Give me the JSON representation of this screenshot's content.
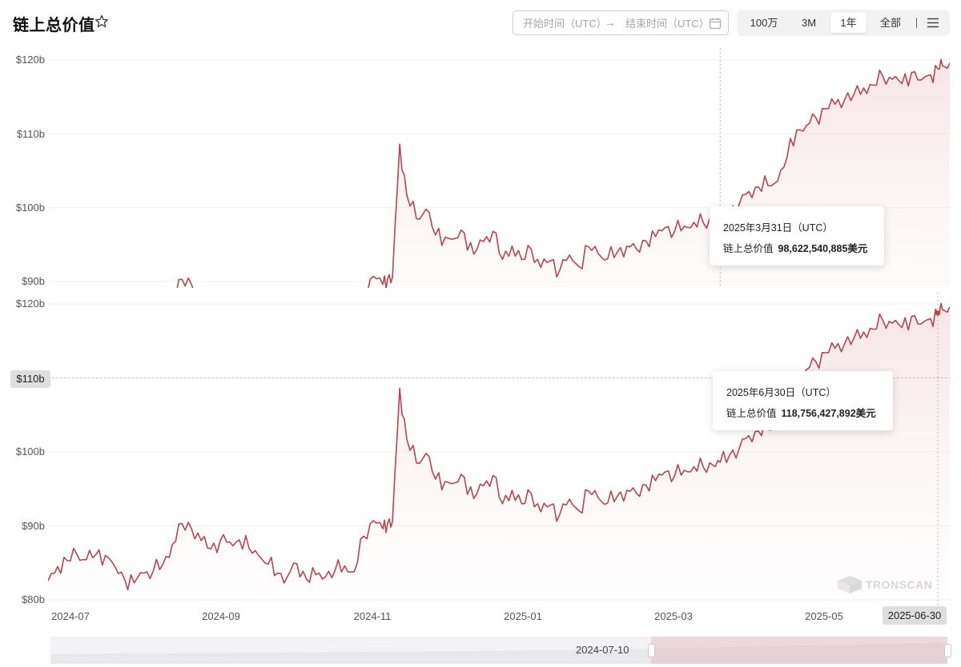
{
  "header": {
    "title": "链上总价值",
    "star_icon": "star-icon",
    "range": {
      "start_placeholder": "开始时间（UTC）",
      "arrow": "→",
      "end_placeholder": "结束时间（UTC）",
      "calendar_icon": "calendar-icon"
    },
    "zoom": [
      {
        "label": "100万",
        "active": false
      },
      {
        "label": "3M",
        "active": false
      },
      {
        "label": "1年",
        "active": true
      },
      {
        "label": "全部",
        "active": false
      }
    ],
    "menu_icon": "menu-icon"
  },
  "chart_data": [
    {
      "type": "area",
      "title": "",
      "xlabel": "",
      "ylabel": "",
      "ylim": [
        88,
        120
      ],
      "y_ticks": [
        "$90b",
        "$100b",
        "$110b",
        "$120b"
      ],
      "clipped_tick": "$80b",
      "crosshair": "vertical",
      "series": [
        {
          "name": "链上总价值",
          "color": "#b5454f",
          "unit": "$b"
        }
      ],
      "tooltip": {
        "date": "2025年3月31日（UTC）",
        "label": "链上总价值",
        "value": "98,622,540,885美元",
        "x": "2025-03-31",
        "y": 98.6225
      }
    },
    {
      "type": "area",
      "title": "",
      "xlabel": "",
      "ylabel": "",
      "ylim": [
        80,
        120
      ],
      "y_ticks": [
        "$80b",
        "$90b",
        "$100b",
        "$120b"
      ],
      "y_highlight": "$110b",
      "crosshair": "both",
      "x_ticks": [
        "2024-07",
        "2024-09",
        "2024-11",
        "2025-01",
        "2025-03",
        "2025-05"
      ],
      "x_highlight": "2025-06-30",
      "series": [
        {
          "name": "链上总价值",
          "color": "#b5454f",
          "unit": "$b",
          "x": [
            "2024-06-23",
            "2024-06-27",
            "2024-07-01",
            "2024-07-05",
            "2024-07-09",
            "2024-07-13",
            "2024-07-17",
            "2024-07-21",
            "2024-07-25",
            "2024-07-29",
            "2024-08-02",
            "2024-08-06",
            "2024-08-10",
            "2024-08-14",
            "2024-08-18",
            "2024-08-22",
            "2024-08-26",
            "2024-08-30",
            "2024-09-03",
            "2024-09-07",
            "2024-09-11",
            "2024-09-15",
            "2024-09-19",
            "2024-09-23",
            "2024-09-27",
            "2024-10-01",
            "2024-10-05",
            "2024-10-09",
            "2024-10-13",
            "2024-10-17",
            "2024-10-21",
            "2024-10-25",
            "2024-10-29",
            "2024-11-02",
            "2024-11-06",
            "2024-11-10",
            "2024-11-12",
            "2024-11-14",
            "2024-11-17",
            "2024-11-20",
            "2024-11-24",
            "2024-11-28",
            "2024-12-02",
            "2024-12-06",
            "2024-12-10",
            "2024-12-14",
            "2024-12-18",
            "2024-12-22",
            "2024-12-26",
            "2024-12-30",
            "2025-01-03",
            "2025-01-07",
            "2025-01-11",
            "2025-01-15",
            "2025-01-19",
            "2025-01-23",
            "2025-01-27",
            "2025-01-31",
            "2025-02-04",
            "2025-02-08",
            "2025-02-12",
            "2025-02-16",
            "2025-02-20",
            "2025-02-24",
            "2025-02-28",
            "2025-03-04",
            "2025-03-08",
            "2025-03-12",
            "2025-03-16",
            "2025-03-20",
            "2025-03-24",
            "2025-03-28",
            "2025-03-31",
            "2025-04-04",
            "2025-04-08",
            "2025-04-12",
            "2025-04-16",
            "2025-04-20",
            "2025-04-24",
            "2025-04-28",
            "2025-05-02",
            "2025-05-06",
            "2025-05-10",
            "2025-05-14",
            "2025-05-18",
            "2025-05-22",
            "2025-05-26",
            "2025-05-30",
            "2025-06-03",
            "2025-06-07",
            "2025-06-11",
            "2025-06-15",
            "2025-06-19",
            "2025-06-23",
            "2025-06-27",
            "2025-06-30",
            "2025-07-02",
            "2025-07-05"
          ],
          "y": [
            82.6,
            84.5,
            85.3,
            86.2,
            85.4,
            86.1,
            86.0,
            84.5,
            82.8,
            82.3,
            83.6,
            83.9,
            84.8,
            87.5,
            90.3,
            89.6,
            88.0,
            86.9,
            88.0,
            87.8,
            88.1,
            87.0,
            86.0,
            84.8,
            83.6,
            83.1,
            84.9,
            82.8,
            83.4,
            83.1,
            84.0,
            84.6,
            83.8,
            88.6,
            90.7,
            89.6,
            90.4,
            90.6,
            108.6,
            101.7,
            98.5,
            99.8,
            96.3,
            96.0,
            95.8,
            96.6,
            93.7,
            95.4,
            96.8,
            93.0,
            94.8,
            93.0,
            94.4,
            91.9,
            92.8,
            91.6,
            93.6,
            92.0,
            94.7,
            93.8,
            93.1,
            94.0,
            94.8,
            94.4,
            95.5,
            96.1,
            97.3,
            96.8,
            97.5,
            98.0,
            97.9,
            98.2,
            98.6,
            99.6,
            100.5,
            102.2,
            102.8,
            103.0,
            103.6,
            106.9,
            110.5,
            111.1,
            112.2,
            113.4,
            114.0,
            114.6,
            115.4,
            116.2,
            116.6,
            117.8,
            117.4,
            116.8,
            118.3,
            117.3,
            118.0,
            118.8,
            119.2,
            119.6
          ]
        }
      ],
      "tooltip": {
        "date": "2025年6月30日（UTC）",
        "label": "链上总价值",
        "value": "118,756,427,892美元",
        "x": "2025-06-30",
        "y": 118.7564
      }
    }
  ],
  "watermark": "TRONSCAN",
  "navigator": {
    "label": "2024-07-10"
  }
}
